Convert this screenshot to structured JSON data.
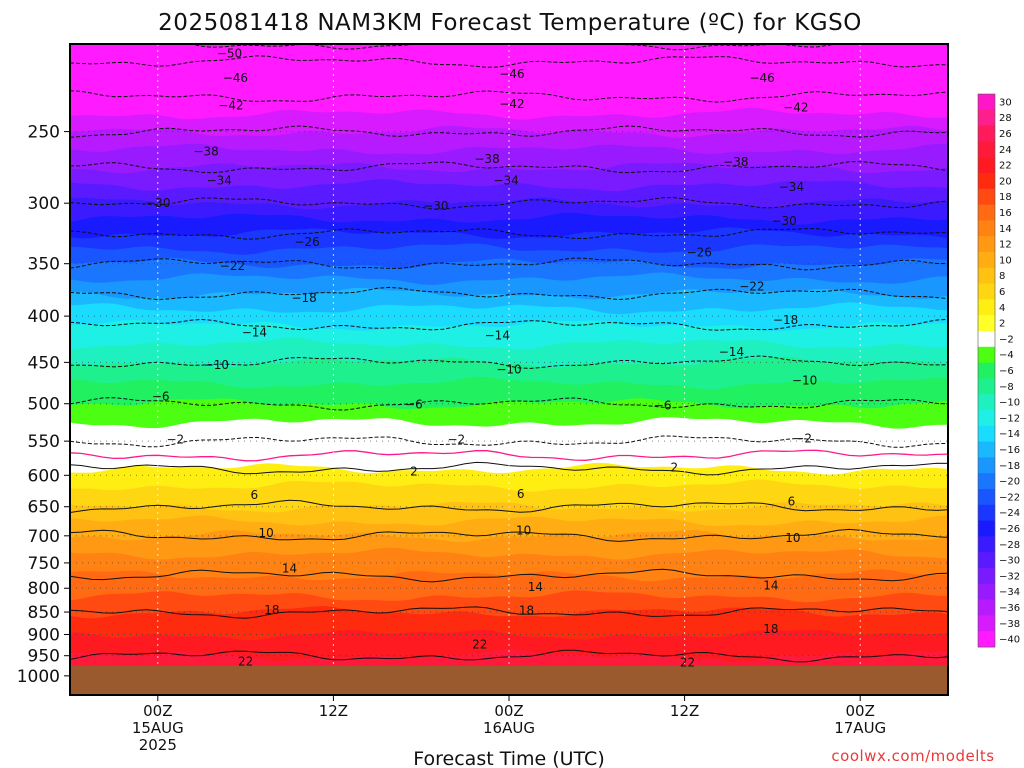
{
  "chart_data": {
    "type": "heatmap",
    "title": "2025081418 NAM3KM Forecast Temperature (ºC) for KGSO",
    "xlabel": "Forecast Time (UTC)",
    "credit": "coolwx.com/modelts",
    "x_ticks": [
      {
        "lines": [
          "00Z",
          "15AUG",
          "2025"
        ],
        "hours": 6
      },
      {
        "lines": [
          "12Z"
        ],
        "hours": 18
      },
      {
        "lines": [
          "00Z",
          "16AUG"
        ],
        "hours": 30
      },
      {
        "lines": [
          "12Z"
        ],
        "hours": 42
      },
      {
        "lines": [
          "00Z",
          "17AUG"
        ],
        "hours": 54
      }
    ],
    "xlim_hours": [
      0,
      60
    ],
    "y_axis": "pressure (hPa), log scale, inverted",
    "ylim": [
      1050,
      200
    ],
    "y_ticks": [
      250,
      300,
      350,
      400,
      450,
      500,
      550,
      600,
      650,
      700,
      750,
      800,
      850,
      900,
      950,
      1000
    ],
    "below_ground_pressure": 975,
    "colorbar_labels": [
      30,
      28,
      26,
      24,
      22,
      20,
      18,
      16,
      14,
      12,
      10,
      8,
      6,
      4,
      2,
      -2,
      -4,
      -6,
      -8,
      -10,
      -12,
      -14,
      -16,
      -18,
      -20,
      -22,
      -24,
      -26,
      -28,
      -30,
      -32,
      -34,
      -36,
      -38,
      -40
    ],
    "colorbar_colors": [
      "#ff17c7",
      "#ff1f8c",
      "#ff1a5c",
      "#ff1a3c",
      "#ff1a22",
      "#ff2b0f",
      "#ff4a12",
      "#ff6a12",
      "#ff8212",
      "#ff9812",
      "#ffad12",
      "#ffc212",
      "#ffd612",
      "#ffee12",
      "#ffff2a",
      "#ffffff",
      "#4cff12",
      "#21f060",
      "#1ff08e",
      "#1ff0c0",
      "#1ff0e6",
      "#1adcff",
      "#1ab8ff",
      "#1a96ff",
      "#1a76ff",
      "#1a56ff",
      "#1a36ff",
      "#1a1aff",
      "#3c1aff",
      "#5a1aff",
      "#7a1aff",
      "#9a1aff",
      "#b81aff",
      "#d81aff",
      "#ff1aff"
    ],
    "temperature_profile": [
      {
        "p": 1000,
        "t": 24
      },
      {
        "p": 950,
        "t": 22
      },
      {
        "p": 900,
        "t": 20
      },
      {
        "p": 850,
        "t": 18
      },
      {
        "p": 800,
        "t": 15
      },
      {
        "p": 750,
        "t": 13
      },
      {
        "p": 700,
        "t": 10
      },
      {
        "p": 650,
        "t": 6
      },
      {
        "p": 600,
        "t": 3
      },
      {
        "p": 570,
        "t": 0
      },
      {
        "p": 550,
        "t": -2
      },
      {
        "p": 500,
        "t": -6
      },
      {
        "p": 450,
        "t": -10
      },
      {
        "p": 400,
        "t": -15
      },
      {
        "p": 350,
        "t": -22
      },
      {
        "p": 300,
        "t": -30
      },
      {
        "p": 250,
        "t": -38
      },
      {
        "p": 200,
        "t": -48
      }
    ],
    "contour_labels": [
      {
        "value": "-50",
        "h": 10.9,
        "p": 205
      },
      {
        "value": "-46",
        "h": 11.3,
        "p": 218
      },
      {
        "value": "-46",
        "h": 30.2,
        "p": 216
      },
      {
        "value": "-46",
        "h": 47.3,
        "p": 218
      },
      {
        "value": "-42",
        "h": 11.0,
        "p": 234
      },
      {
        "value": "-42",
        "h": 30.2,
        "p": 233
      },
      {
        "value": "-42",
        "h": 49.6,
        "p": 235
      },
      {
        "value": "-38",
        "h": 9.3,
        "p": 263
      },
      {
        "value": "-38",
        "h": 28.5,
        "p": 268
      },
      {
        "value": "-38",
        "h": 45.5,
        "p": 270
      },
      {
        "value": "-34",
        "h": 10.2,
        "p": 283
      },
      {
        "value": "-34",
        "h": 29.8,
        "p": 283
      },
      {
        "value": "-34",
        "h": 49.3,
        "p": 288
      },
      {
        "value": "-30",
        "h": 6.0,
        "p": 300
      },
      {
        "value": "-30",
        "h": 25.0,
        "p": 302
      },
      {
        "value": "-30",
        "h": 48.8,
        "p": 314
      },
      {
        "value": "-26",
        "h": 16.2,
        "p": 331
      },
      {
        "value": "-26",
        "h": 43.0,
        "p": 340
      },
      {
        "value": "-22",
        "h": 11.1,
        "p": 352
      },
      {
        "value": "-22",
        "h": 46.6,
        "p": 371
      },
      {
        "value": "-18",
        "h": 16.0,
        "p": 382
      },
      {
        "value": "-18",
        "h": 48.9,
        "p": 404
      },
      {
        "value": "-14",
        "h": 12.6,
        "p": 417
      },
      {
        "value": "-14",
        "h": 29.2,
        "p": 420
      },
      {
        "value": "-14",
        "h": 45.2,
        "p": 438
      },
      {
        "value": "-10",
        "h": 10.0,
        "p": 453
      },
      {
        "value": "-10",
        "h": 30.0,
        "p": 458
      },
      {
        "value": "-10",
        "h": 50.2,
        "p": 471
      },
      {
        "value": "-6",
        "h": 6.2,
        "p": 491
      },
      {
        "value": "-6",
        "h": 23.5,
        "p": 501
      },
      {
        "value": "-6",
        "h": 40.5,
        "p": 502
      },
      {
        "value": "-2",
        "h": 7.2,
        "p": 548
      },
      {
        "value": "-2",
        "h": 26.4,
        "p": 548
      },
      {
        "value": "-2",
        "h": 50.1,
        "p": 546
      },
      {
        "value": "2",
        "h": 23.5,
        "p": 594
      },
      {
        "value": "2",
        "h": 41.3,
        "p": 588
      },
      {
        "value": "6",
        "h": 12.6,
        "p": 631
      },
      {
        "value": "6",
        "h": 30.8,
        "p": 629
      },
      {
        "value": "6",
        "h": 49.3,
        "p": 641
      },
      {
        "value": "10",
        "h": 13.4,
        "p": 695
      },
      {
        "value": "10",
        "h": 31.0,
        "p": 691
      },
      {
        "value": "10",
        "h": 49.4,
        "p": 704
      },
      {
        "value": "14",
        "h": 15.0,
        "p": 761
      },
      {
        "value": "14",
        "h": 31.8,
        "p": 797
      },
      {
        "value": "14",
        "h": 47.9,
        "p": 794
      },
      {
        "value": "18",
        "h": 13.8,
        "p": 846
      },
      {
        "value": "18",
        "h": 31.2,
        "p": 847
      },
      {
        "value": "18",
        "h": 47.9,
        "p": 888
      },
      {
        "value": "22",
        "h": 28.0,
        "p": 923
      },
      {
        "value": "22",
        "h": 12.0,
        "p": 964
      },
      {
        "value": "22",
        "h": 42.2,
        "p": 967
      }
    ]
  }
}
